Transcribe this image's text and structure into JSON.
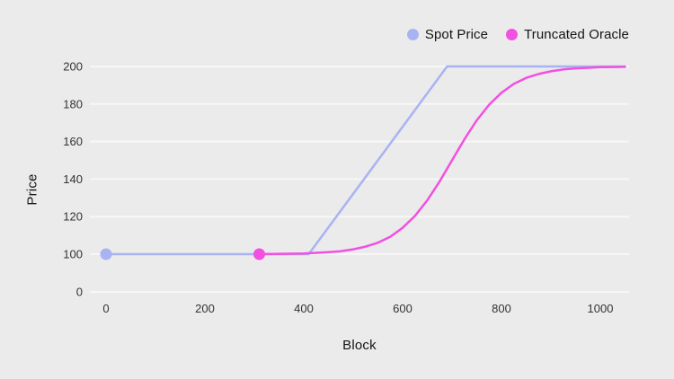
{
  "chart_data": {
    "type": "line",
    "title": "",
    "xlabel": "Block",
    "ylabel": "Price",
    "background": "#ebebeb",
    "grid_color": "#f7f7f7",
    "text_color": "#141414",
    "x_ticks": [
      0,
      200,
      400,
      600,
      800,
      1000
    ],
    "y_ticks": [
      0,
      100,
      120,
      140,
      160,
      180,
      200
    ],
    "x_range": [
      0,
      1050
    ],
    "y_range_plotted": [
      100,
      200
    ],
    "axis_note": "y tick 0 is shown one gridline step below 100 (broken axis)",
    "grid": "horizontal-only",
    "legend_position": "top-right",
    "series": [
      {
        "name": "Spot Price",
        "color": "#a9b3f2",
        "points": [
          [
            0,
            100
          ],
          [
            410,
            100
          ],
          [
            690,
            200
          ],
          [
            1050,
            200
          ]
        ],
        "marker": [
          0,
          100
        ]
      },
      {
        "name": "Truncated Oracle",
        "color": "#f150e0",
        "points": [
          [
            310,
            100
          ],
          [
            400,
            100.4
          ],
          [
            450,
            101.1
          ],
          [
            475,
            101.6
          ],
          [
            500,
            102.6
          ],
          [
            525,
            104
          ],
          [
            550,
            106.1
          ],
          [
            575,
            109.3
          ],
          [
            600,
            114
          ],
          [
            625,
            120.4
          ],
          [
            650,
            128.7
          ],
          [
            675,
            138.8
          ],
          [
            700,
            150
          ],
          [
            725,
            161.2
          ],
          [
            750,
            171.3
          ],
          [
            775,
            179.6
          ],
          [
            800,
            186
          ],
          [
            825,
            190.7
          ],
          [
            850,
            193.9
          ],
          [
            875,
            196
          ],
          [
            900,
            197.4
          ],
          [
            925,
            198.4
          ],
          [
            950,
            199
          ],
          [
            975,
            199.3
          ],
          [
            1000,
            199.6
          ],
          [
            1025,
            199.7
          ],
          [
            1050,
            199.8
          ]
        ],
        "marker": [
          310,
          100
        ]
      }
    ]
  }
}
